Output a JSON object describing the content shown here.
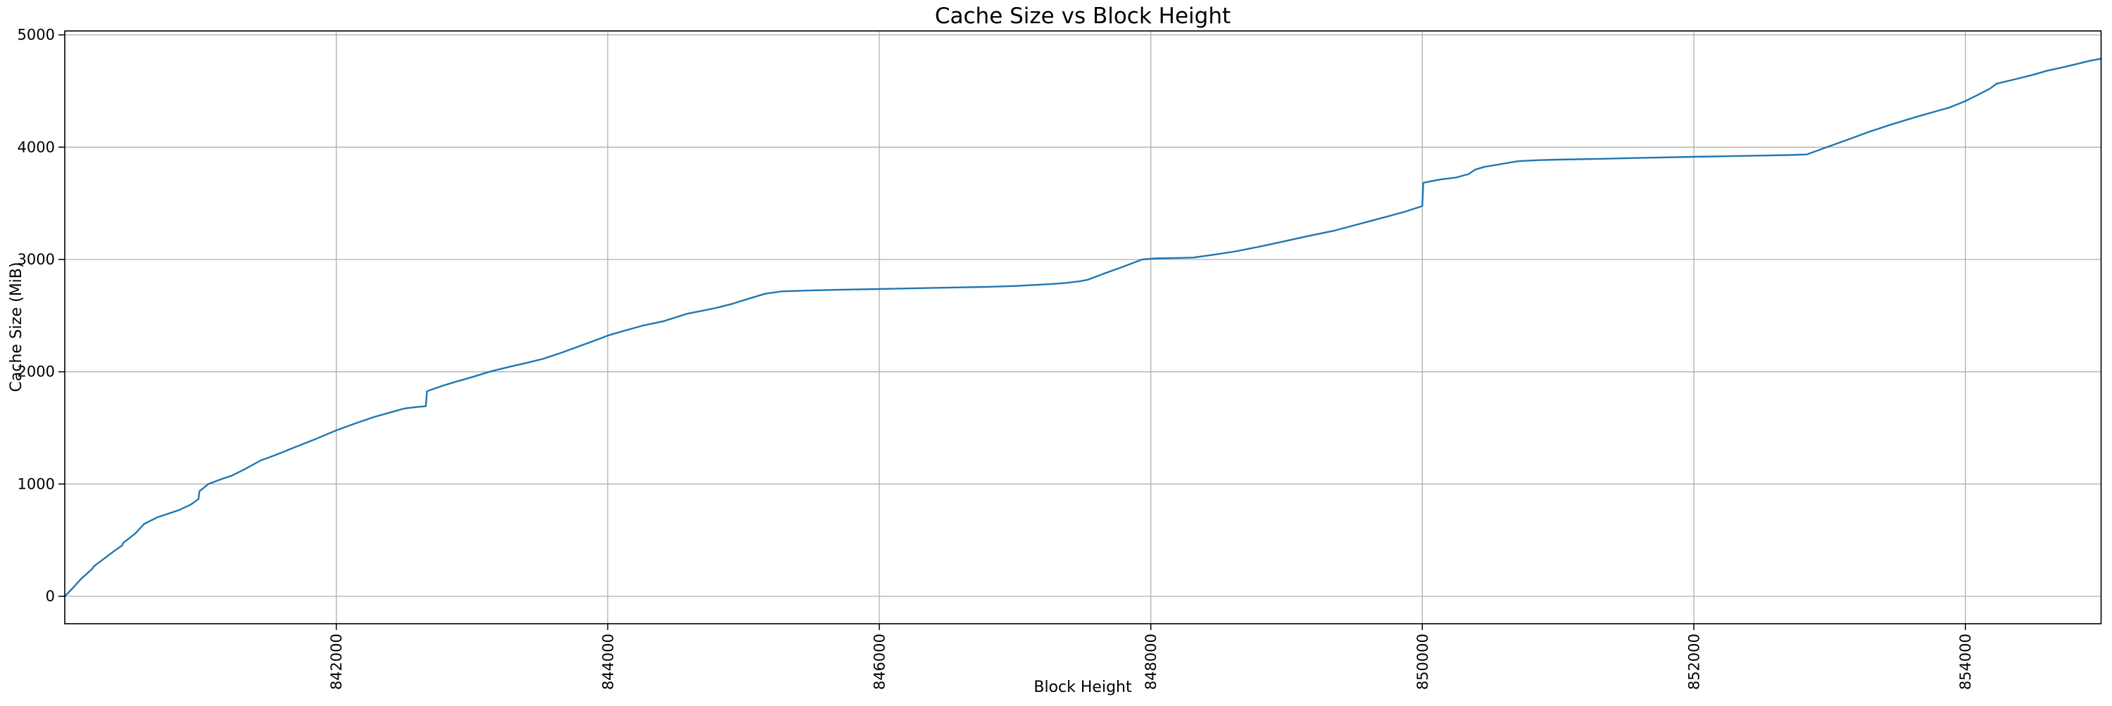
{
  "figure": {
    "background": "#ffffff"
  },
  "chart_data": {
    "type": "line",
    "title": "Cache Size vs Block Height",
    "xlabel": "Block Height",
    "ylabel": "Cache Size (MiB)",
    "x_ticks": [
      842000,
      844000,
      846000,
      848000,
      850000,
      852000,
      854000
    ],
    "y_ticks": [
      0,
      1000,
      2000,
      3000,
      4000,
      5000
    ],
    "xlim": [
      840000,
      855000
    ],
    "ylim": [
      -244,
      5035
    ],
    "grid": true,
    "legend": "none",
    "x_tick_rotation_deg": 90,
    "colors": {
      "line": "#1f77b4",
      "grid": "#b0b0b0",
      "spine": "#000000",
      "background": "#ffffff"
    },
    "series": [
      {
        "name": "cache-size-vs-block-height",
        "points": [
          [
            840000,
            0
          ],
          [
            840060,
            75
          ],
          [
            840120,
            155
          ],
          [
            840205,
            248
          ],
          [
            840212,
            265
          ],
          [
            840300,
            345
          ],
          [
            840360,
            400
          ],
          [
            840424,
            455
          ],
          [
            840430,
            475
          ],
          [
            840520,
            560
          ],
          [
            840585,
            645
          ],
          [
            840680,
            702
          ],
          [
            840845,
            770
          ],
          [
            840930,
            818
          ],
          [
            840985,
            866
          ],
          [
            840992,
            936
          ],
          [
            841058,
            1000
          ],
          [
            841150,
            1042
          ],
          [
            841234,
            1077
          ],
          [
            841330,
            1135
          ],
          [
            841441,
            1209
          ],
          [
            841560,
            1262
          ],
          [
            841700,
            1330
          ],
          [
            841850,
            1402
          ],
          [
            842000,
            1478
          ],
          [
            842140,
            1540
          ],
          [
            842280,
            1598
          ],
          [
            842420,
            1645
          ],
          [
            842500,
            1672
          ],
          [
            842590,
            1686
          ],
          [
            842660,
            1693
          ],
          [
            842668,
            1826
          ],
          [
            842790,
            1878
          ],
          [
            842900,
            1918
          ],
          [
            843000,
            1952
          ],
          [
            843128,
            2000
          ],
          [
            843260,
            2040
          ],
          [
            843400,
            2078
          ],
          [
            843520,
            2114
          ],
          [
            843660,
            2170
          ],
          [
            843800,
            2232
          ],
          [
            843900,
            2276
          ],
          [
            844000,
            2322
          ],
          [
            844130,
            2368
          ],
          [
            844260,
            2412
          ],
          [
            844410,
            2450
          ],
          [
            844520,
            2492
          ],
          [
            844589,
            2518
          ],
          [
            844700,
            2544
          ],
          [
            844800,
            2569
          ],
          [
            844920,
            2606
          ],
          [
            845030,
            2648
          ],
          [
            845160,
            2695
          ],
          [
            845285,
            2716
          ],
          [
            845470,
            2723
          ],
          [
            845700,
            2730
          ],
          [
            846000,
            2737
          ],
          [
            846300,
            2744
          ],
          [
            846600,
            2751
          ],
          [
            846800,
            2756
          ],
          [
            847000,
            2764
          ],
          [
            847200,
            2776
          ],
          [
            847360,
            2789
          ],
          [
            847480,
            2806
          ],
          [
            847537,
            2820
          ],
          [
            847660,
            2876
          ],
          [
            847800,
            2937
          ],
          [
            847937,
            3000
          ],
          [
            848030,
            3009
          ],
          [
            848180,
            3013
          ],
          [
            848312,
            3017
          ],
          [
            848460,
            3042
          ],
          [
            848624,
            3072
          ],
          [
            848800,
            3114
          ],
          [
            848962,
            3156
          ],
          [
            849150,
            3206
          ],
          [
            849350,
            3256
          ],
          [
            849480,
            3298
          ],
          [
            849610,
            3340
          ],
          [
            849750,
            3385
          ],
          [
            849870,
            3425
          ],
          [
            850000,
            3475
          ],
          [
            850007,
            3683
          ],
          [
            850130,
            3712
          ],
          [
            850250,
            3730
          ],
          [
            850340,
            3760
          ],
          [
            850390,
            3800
          ],
          [
            850460,
            3825
          ],
          [
            850560,
            3845
          ],
          [
            850640,
            3862
          ],
          [
            850711,
            3876
          ],
          [
            850850,
            3884
          ],
          [
            851000,
            3889
          ],
          [
            851300,
            3896
          ],
          [
            851600,
            3904
          ],
          [
            852000,
            3914
          ],
          [
            852300,
            3921
          ],
          [
            852550,
            3926
          ],
          [
            852700,
            3930
          ],
          [
            852830,
            3935
          ],
          [
            852980,
            4000
          ],
          [
            853130,
            4065
          ],
          [
            853280,
            4132
          ],
          [
            853450,
            4200
          ],
          [
            853640,
            4270
          ],
          [
            853800,
            4325
          ],
          [
            853880,
            4352
          ],
          [
            854000,
            4410
          ],
          [
            854100,
            4470
          ],
          [
            854180,
            4520
          ],
          [
            854230,
            4565
          ],
          [
            854350,
            4600
          ],
          [
            854500,
            4645
          ],
          [
            854600,
            4680
          ],
          [
            854750,
            4720
          ],
          [
            854920,
            4770
          ],
          [
            855000,
            4787
          ]
        ]
      }
    ]
  }
}
